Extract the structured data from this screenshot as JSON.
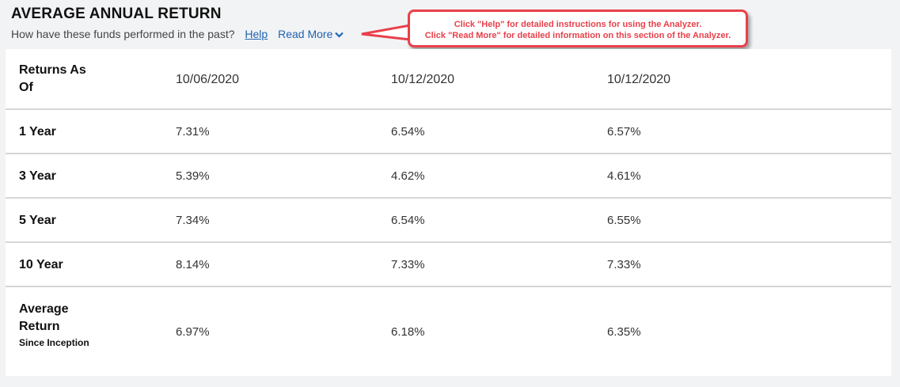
{
  "header": {
    "title": "AVERAGE ANNUAL RETURN",
    "subtitle": "How have these funds performed in the past?",
    "help_link": "Help",
    "read_more_link": "Read More",
    "read_more_icon": "chevron-down-icon"
  },
  "callout": {
    "line1": "Click \"Help\" for detailed instructions for using the Analyzer.",
    "line2": "Click \"Read More\" for detailed information on this section of the Analyzer.",
    "color": "#e8404a"
  },
  "table": {
    "header": {
      "label": "Returns As Of",
      "values": [
        "10/06/2020",
        "10/12/2020",
        "10/12/2020"
      ]
    },
    "rows": [
      {
        "label": "1 Year",
        "values": [
          "7.31%",
          "6.54%",
          "6.57%"
        ]
      },
      {
        "label": "3 Year",
        "values": [
          "5.39%",
          "4.62%",
          "4.61%"
        ]
      },
      {
        "label": "5 Year",
        "values": [
          "7.34%",
          "6.54%",
          "6.55%"
        ]
      },
      {
        "label": "10 Year",
        "values": [
          "8.14%",
          "7.33%",
          "7.33%"
        ]
      }
    ],
    "last": {
      "label": "Average Return",
      "sublabel": "Since Inception",
      "values": [
        "6.97%",
        "6.18%",
        "6.35%"
      ]
    }
  }
}
